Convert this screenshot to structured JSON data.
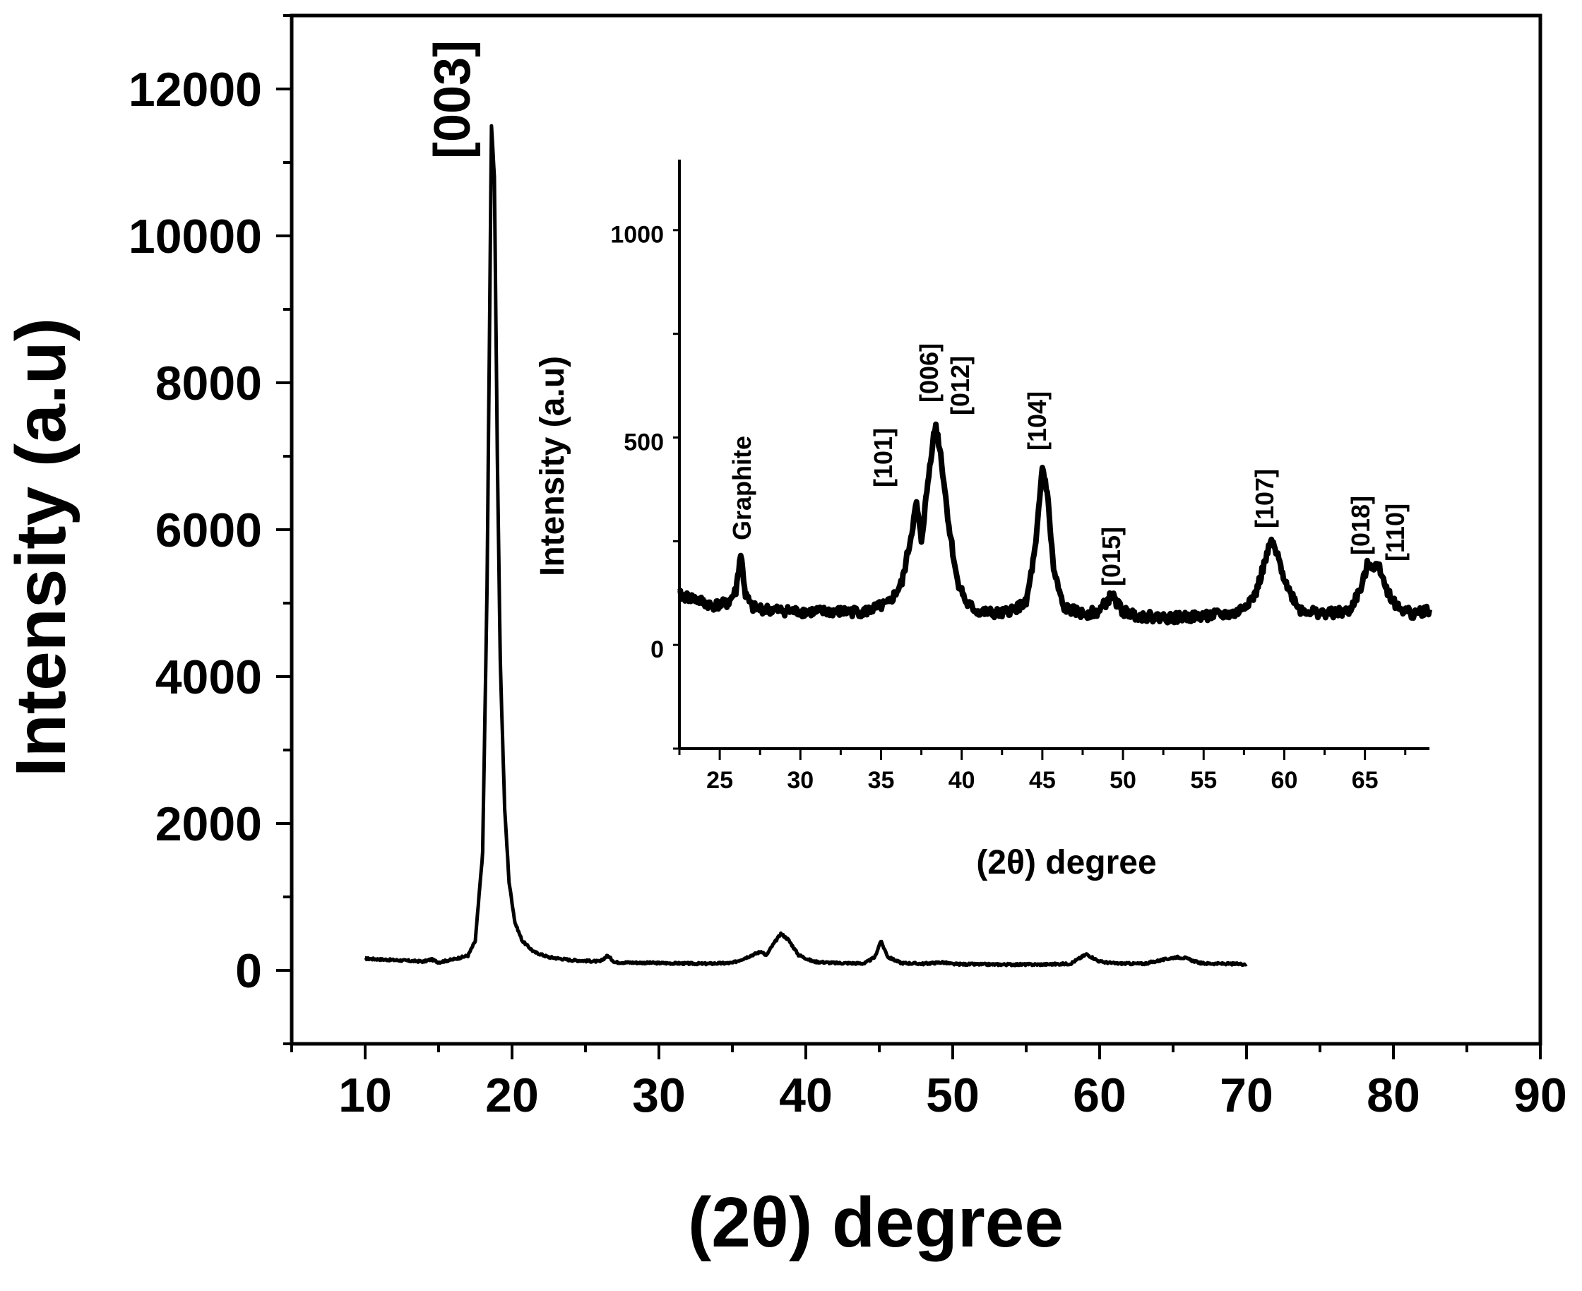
{
  "chart_data": [
    {
      "type": "line",
      "role": "main",
      "title": "",
      "xlabel": "(2θ) degree",
      "ylabel": "Intensity (a.u)",
      "xlim": [
        5,
        90
      ],
      "ylim": [
        -1000,
        13000
      ],
      "xticks": [
        10,
        20,
        30,
        40,
        50,
        60,
        70,
        80,
        90
      ],
      "yticks": [
        0,
        2000,
        4000,
        6000,
        8000,
        10000,
        12000
      ],
      "grid": false,
      "line_color": "#000000",
      "x": [
        10,
        12,
        14,
        14.5,
        15,
        16,
        17,
        17.5,
        18,
        18.3,
        18.6,
        18.8,
        19.0,
        19.2,
        19.5,
        19.8,
        20.2,
        20.7,
        21.5,
        22.5,
        24,
        26,
        26.5,
        27,
        30,
        33,
        35,
        37,
        37.3,
        37.7,
        38.3,
        38.8,
        39.5,
        40.5,
        42,
        44,
        44.7,
        45.1,
        45.6,
        46.5,
        48,
        49.3,
        50,
        53,
        56,
        58,
        59.1,
        60,
        61,
        63,
        65.2,
        65.8,
        66.5,
        67,
        70
      ],
      "y": [
        160,
        140,
        120,
        150,
        110,
        150,
        200,
        400,
        1600,
        5200,
        11500,
        10800,
        7000,
        4200,
        2200,
        1200,
        650,
        400,
        250,
        180,
        140,
        120,
        200,
        110,
        100,
        90,
        100,
        260,
        200,
        330,
        500,
        420,
        210,
        120,
        100,
        95,
        180,
        400,
        180,
        100,
        90,
        110,
        85,
        80,
        80,
        90,
        220,
        120,
        95,
        90,
        180,
        170,
        120,
        95,
        85
      ],
      "annotations": [
        {
          "text": "[003]",
          "x": 18.9,
          "orientation": "vertical"
        }
      ]
    },
    {
      "type": "line",
      "role": "inset",
      "title": "",
      "xlabel": "(2θ) degree",
      "ylabel": "Intensity (a.u)",
      "xlim": [
        22.5,
        69
      ],
      "ylim": [
        -240,
        1180
      ],
      "xticks": [
        25,
        30,
        35,
        40,
        45,
        50,
        55,
        60,
        65
      ],
      "yticks": [
        0,
        500,
        1000
      ],
      "grid": false,
      "line_color": "#000000",
      "x": [
        22.5,
        23.5,
        24.5,
        25.5,
        26.0,
        26.3,
        26.6,
        27.0,
        28,
        30,
        32,
        34,
        35.5,
        36.3,
        36.8,
        37.2,
        37.5,
        37.9,
        38.2,
        38.4,
        38.7,
        39.2,
        39.7,
        40.3,
        41,
        42.5,
        44,
        44.6,
        45.0,
        45.3,
        45.7,
        46.3,
        47.5,
        48.5,
        49.3,
        50,
        51,
        53,
        55,
        57,
        58.2,
        58.8,
        59.2,
        59.6,
        60.3,
        61,
        62.5,
        64,
        64.8,
        65.2,
        65.5,
        65.9,
        66.4,
        67,
        68,
        69
      ],
      "y": [
        130,
        120,
        105,
        110,
        140,
        230,
        130,
        100,
        95,
        90,
        90,
        90,
        110,
        160,
        260,
        350,
        260,
        400,
        500,
        540,
        470,
        300,
        170,
        110,
        90,
        85,
        110,
        250,
        440,
        380,
        190,
        100,
        85,
        90,
        130,
        90,
        80,
        75,
        80,
        85,
        130,
        210,
        260,
        220,
        140,
        95,
        85,
        90,
        150,
        210,
        200,
        200,
        140,
        100,
        85,
        95
      ],
      "annotations": [
        {
          "text": "Graphite",
          "x": 26.3,
          "orientation": "vertical"
        },
        {
          "text": "[101]",
          "x": 37.0,
          "orientation": "vertical"
        },
        {
          "text": "[006]",
          "x": 38.3,
          "orientation": "vertical"
        },
        {
          "text": "[012]",
          "x": 39.8,
          "orientation": "vertical"
        },
        {
          "text": "[104]",
          "x": 44.9,
          "orientation": "vertical"
        },
        {
          "text": "[015]",
          "x": 49.4,
          "orientation": "vertical"
        },
        {
          "text": "[107]",
          "x": 59.0,
          "orientation": "vertical"
        },
        {
          "text": "[018]",
          "x": 65.0,
          "orientation": "vertical"
        },
        {
          "text": "[110]",
          "x": 66.2,
          "orientation": "vertical"
        }
      ]
    }
  ]
}
